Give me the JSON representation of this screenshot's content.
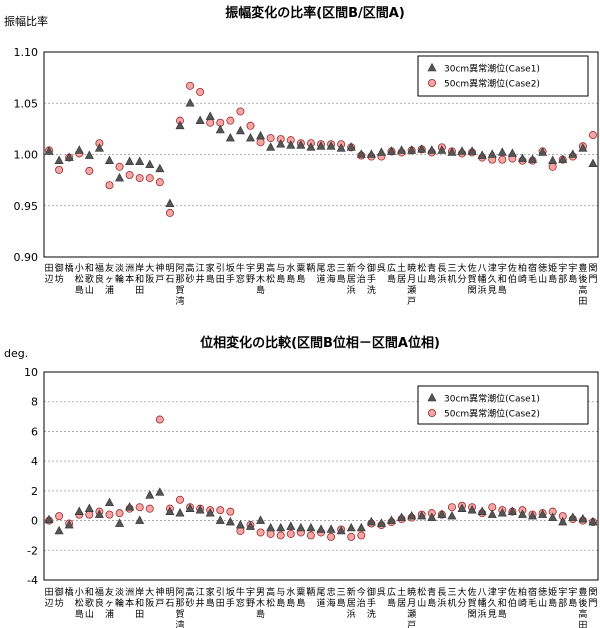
{
  "categories": [
    {
      "name": "田辺",
      "lines": [
        "田",
        "辺"
      ]
    },
    {
      "name": "御坊",
      "lines": [
        "御",
        "坊"
      ]
    },
    {
      "name": "橋",
      "lines": [
        "橋"
      ]
    },
    {
      "name": "小松島",
      "lines": [
        "小",
        "松",
        "島"
      ]
    },
    {
      "name": "和歌山",
      "lines": [
        "和",
        "歌",
        "山"
      ]
    },
    {
      "name": "福良",
      "lines": [
        "福",
        "良"
      ]
    },
    {
      "name": "友ヶ浦",
      "lines": [
        "友",
        "ヶ",
        "浦"
      ]
    },
    {
      "name": "淡輪",
      "lines": [
        "淡",
        "輪"
      ]
    },
    {
      "name": "洲本",
      "lines": [
        "洲",
        "本"
      ]
    },
    {
      "name": "岸和田",
      "lines": [
        "岸",
        "和",
        "田"
      ]
    },
    {
      "name": "大阪",
      "lines": [
        "大",
        "阪"
      ]
    },
    {
      "name": "神戸",
      "lines": [
        "神",
        "戸"
      ]
    },
    {
      "name": "明石",
      "lines": [
        "明",
        "石"
      ]
    },
    {
      "name": "阿那賀湾",
      "lines": [
        "阿",
        "那",
        "賀",
        "湾"
      ]
    },
    {
      "name": "高砂",
      "lines": [
        "高",
        "砂"
      ]
    },
    {
      "name": "江井",
      "lines": [
        "江",
        "井"
      ]
    },
    {
      "name": "家島",
      "lines": [
        "家",
        "島"
      ]
    },
    {
      "name": "引田",
      "lines": [
        "引",
        "田"
      ]
    },
    {
      "name": "坂手",
      "lines": [
        "坂",
        "手"
      ]
    },
    {
      "name": "牛窓",
      "lines": [
        "牛",
        "窓"
      ]
    },
    {
      "name": "宇野",
      "lines": [
        "宇",
        "野"
      ]
    },
    {
      "name": "男木島",
      "lines": [
        "男",
        "木",
        "島"
      ]
    },
    {
      "name": "高松",
      "lines": [
        "高",
        "松"
      ]
    },
    {
      "name": "与島",
      "lines": [
        "与",
        "島"
      ]
    },
    {
      "name": "水島",
      "lines": [
        "水",
        "島"
      ]
    },
    {
      "name": "粟島",
      "lines": [
        "粟",
        "島"
      ]
    },
    {
      "name": "鞆",
      "lines": [
        "鞆"
      ]
    },
    {
      "name": "尾道",
      "lines": [
        "尾",
        "道"
      ]
    },
    {
      "name": "忠海",
      "lines": [
        "忠",
        "海"
      ]
    },
    {
      "name": "三島",
      "lines": [
        "三",
        "島"
      ]
    },
    {
      "name": "新居浜",
      "lines": [
        "新",
        "居",
        "浜"
      ]
    },
    {
      "name": "今治",
      "lines": [
        "今",
        "治"
      ]
    },
    {
      "name": "御手洗",
      "lines": [
        "御",
        "手",
        "洗"
      ]
    },
    {
      "name": "呉",
      "lines": [
        "呉"
      ]
    },
    {
      "name": "広島",
      "lines": [
        "広",
        "島"
      ]
    },
    {
      "name": "土居",
      "lines": [
        "土",
        "居"
      ]
    },
    {
      "name": "暁月瀬戸",
      "lines": [
        "暁",
        "月",
        "瀬",
        "戸"
      ]
    },
    {
      "name": "松山",
      "lines": [
        "松",
        "山"
      ]
    },
    {
      "name": "青島",
      "lines": [
        "青",
        "島"
      ]
    },
    {
      "name": "長浜",
      "lines": [
        "長",
        "浜"
      ]
    },
    {
      "name": "三机",
      "lines": [
        "三",
        "机"
      ]
    },
    {
      "name": "大分",
      "lines": [
        "大",
        "分"
      ]
    },
    {
      "name": "佐賀関",
      "lines": [
        "佐",
        "賀",
        "関"
      ]
    },
    {
      "name": "八幡浜",
      "lines": [
        "八",
        "幡",
        "浜"
      ]
    },
    {
      "name": "津久見",
      "lines": [
        "津",
        "久",
        "見"
      ]
    },
    {
      "name": "宇和島",
      "lines": [
        "宇",
        "和",
        "島"
      ]
    },
    {
      "name": "佐伯",
      "lines": [
        "佐",
        "伯"
      ]
    },
    {
      "name": "柏崎",
      "lines": [
        "柏",
        "崎"
      ]
    },
    {
      "name": "宿毛",
      "lines": [
        "宿",
        "毛"
      ]
    },
    {
      "name": "徳山",
      "lines": [
        "徳",
        "山"
      ]
    },
    {
      "name": "姫島",
      "lines": [
        "姫",
        "島"
      ]
    },
    {
      "name": "宇部",
      "lines": [
        "宇",
        "部"
      ]
    },
    {
      "name": "宇島",
      "lines": [
        "宇",
        "島"
      ]
    },
    {
      "name": "豊後高田",
      "lines": [
        "豊",
        "後",
        "高",
        "田"
      ]
    },
    {
      "name": "関門",
      "lines": [
        "関",
        "門"
      ]
    }
  ],
  "chart_data": [
    {
      "type": "scatter",
      "title": "振幅変化の比率(区間B/区間A)",
      "ylabel": "振幅比率",
      "ylim": [
        0.9,
        1.1
      ],
      "yticks": [
        "0.90",
        "0.95",
        "1.00",
        "1.05",
        "1.10"
      ],
      "ytick_values": [
        0.9,
        0.95,
        1.0,
        1.05,
        1.1
      ],
      "grid": true,
      "legend_position": "top-right",
      "series": [
        {
          "name": "30cm異常潮位(Case1)",
          "marker": "triangle",
          "color": "#555555",
          "values": [
            1.003,
            0.994,
            0.997,
            1.004,
            0.999,
            1.006,
            0.994,
            0.977,
            0.993,
            0.993,
            0.99,
            0.986,
            0.952,
            1.028,
            1.05,
            1.033,
            1.037,
            1.024,
            1.016,
            1.023,
            1.016,
            1.018,
            1.007,
            1.01,
            1.009,
            1.009,
            1.007,
            1.008,
            1.008,
            1.006,
            1.007,
            1.0,
            1.0,
            1.002,
            1.003,
            1.004,
            1.004,
            1.005,
            1.004,
            1.004,
            1.002,
            1.003,
            1.003,
            0.999,
            1.0,
            1.002,
            1.001,
            0.996,
            0.995,
            1.002,
            0.994,
            0.995,
            1.0,
            1.006,
            0.991
          ]
        },
        {
          "name": "50cm異常潮位(Case2)",
          "marker": "circle",
          "color": "#f4a6a6",
          "values": [
            1.004,
            0.985,
            0.997,
            1.001,
            0.984,
            1.011,
            0.97,
            0.988,
            0.98,
            0.977,
            0.977,
            0.973,
            0.943,
            1.033,
            1.067,
            1.061,
            1.031,
            1.031,
            1.033,
            1.042,
            1.028,
            1.012,
            1.016,
            1.015,
            1.014,
            1.011,
            1.011,
            1.01,
            1.01,
            1.01,
            1.007,
            0.999,
            0.998,
            0.998,
            1.003,
            1.002,
            1.004,
            1.005,
            1.002,
            1.007,
            1.003,
            1.001,
            1.002,
            0.997,
            0.995,
            0.995,
            0.996,
            0.994,
            0.994,
            1.003,
            0.988,
            0.995,
            0.998,
            1.008,
            1.019
          ]
        }
      ]
    },
    {
      "type": "scatter",
      "title": "位相変化の比較(区間B位相－区間A位相)",
      "ylabel": "deg.",
      "ylim": [
        -4,
        10
      ],
      "yticks": [
        "-4",
        "-2",
        "0",
        "2",
        "4",
        "6",
        "8",
        "10"
      ],
      "ytick_values": [
        -4,
        -2,
        0,
        2,
        4,
        6,
        8,
        10
      ],
      "grid": true,
      "legend_position": "top-right",
      "series": [
        {
          "name": "30cm異常潮位(Case1)",
          "marker": "triangle",
          "color": "#555555",
          "values": [
            0.05,
            -0.7,
            -0.3,
            0.6,
            0.8,
            0.4,
            1.2,
            -0.2,
            0.9,
            0.0,
            1.7,
            1.9,
            0.6,
            0.5,
            0.8,
            0.7,
            0.5,
            0.0,
            -0.1,
            -0.3,
            -0.4,
            0.0,
            -0.5,
            -0.5,
            -0.4,
            -0.5,
            -0.5,
            -0.6,
            -0.6,
            -0.7,
            -0.5,
            -0.5,
            -0.1,
            -0.2,
            0.0,
            0.2,
            0.3,
            0.3,
            0.2,
            0.4,
            0.3,
            0.8,
            0.7,
            0.6,
            0.4,
            0.5,
            0.6,
            0.4,
            0.3,
            0.4,
            0.2,
            -0.1,
            0.2,
            0.1,
            -0.1
          ]
        },
        {
          "name": "50cm異常潮位(Case2)",
          "marker": "circle",
          "color": "#f4a6a6",
          "values": [
            0.0,
            0.3,
            -0.2,
            0.4,
            0.4,
            0.6,
            0.4,
            0.5,
            0.8,
            0.9,
            0.8,
            6.8,
            0.8,
            1.4,
            0.9,
            0.8,
            0.7,
            0.7,
            0.6,
            -0.7,
            -0.3,
            -0.8,
            -0.9,
            -1.0,
            -0.9,
            -0.8,
            -1.0,
            -0.8,
            -1.1,
            -0.6,
            -1.1,
            -1.0,
            -0.2,
            -0.3,
            -0.1,
            0.1,
            0.2,
            0.4,
            0.5,
            0.4,
            0.9,
            1.0,
            0.9,
            0.5,
            0.9,
            0.7,
            0.6,
            0.7,
            0.4,
            0.5,
            0.6,
            0.3,
            0.1,
            0.0,
            -0.1
          ]
        }
      ]
    }
  ]
}
